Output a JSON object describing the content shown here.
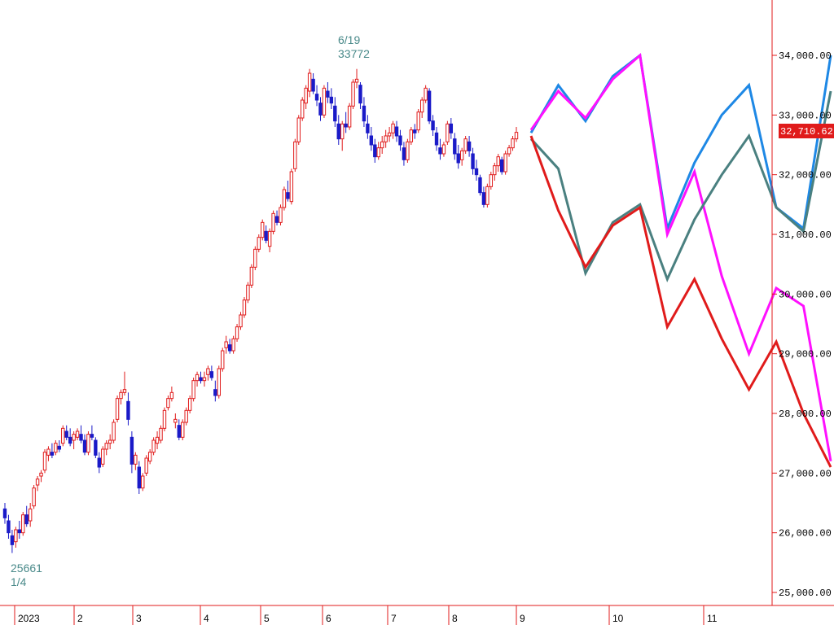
{
  "colors": {
    "up": "#e01b1b",
    "down": "#1a1ac8",
    "axis": "#e01b1b",
    "annotation": "#4a8a8a",
    "badge": "#e01b1b"
  },
  "chart_data": {
    "type": "candlestick",
    "ylim": [
      25000,
      34000
    ],
    "y_ticks": [
      "25,000.00",
      "26,000.00",
      "27,000.00",
      "28,000.00",
      "29,000.00",
      "30,000.00",
      "31,000.00",
      "32,000.00",
      "33,000.00",
      "34,000.00"
    ],
    "x_ticks": [
      "2023",
      "2",
      "3",
      "4",
      "5",
      "6",
      "7",
      "8",
      "9",
      "10",
      "11"
    ],
    "last_price": "32,710.62",
    "annotations": [
      {
        "label": "6/19",
        "value": "33772"
      },
      {
        "label": "25661",
        "value": "1/4"
      }
    ],
    "candles": [
      [
        26400,
        26500,
        26150,
        26250
      ],
      [
        26200,
        26300,
        25900,
        26000
      ],
      [
        25950,
        26050,
        25661,
        25800
      ],
      [
        25850,
        26100,
        25750,
        26050
      ],
      [
        26050,
        26200,
        25900,
        26000
      ],
      [
        26000,
        26350,
        25950,
        26300
      ],
      [
        26300,
        26450,
        26100,
        26150
      ],
      [
        26200,
        26500,
        26100,
        26400
      ],
      [
        26450,
        26800,
        26400,
        26750
      ],
      [
        26800,
        26950,
        26700,
        26900
      ],
      [
        26950,
        27050,
        26850,
        27000
      ],
      [
        27050,
        27400,
        27000,
        27350
      ],
      [
        27300,
        27450,
        27200,
        27400
      ],
      [
        27350,
        27500,
        27250,
        27300
      ],
      [
        27350,
        27550,
        27300,
        27500
      ],
      [
        27450,
        27550,
        27350,
        27400
      ],
      [
        27500,
        27800,
        27450,
        27750
      ],
      [
        27700,
        27800,
        27550,
        27600
      ],
      [
        27600,
        27750,
        27450,
        27500
      ],
      [
        27550,
        27700,
        27400,
        27650
      ],
      [
        27600,
        27750,
        27550,
        27700
      ],
      [
        27650,
        27800,
        27500,
        27550
      ],
      [
        27550,
        27650,
        27300,
        27350
      ],
      [
        27350,
        27700,
        27300,
        27650
      ],
      [
        27650,
        27800,
        27550,
        27600
      ],
      [
        27550,
        27600,
        27250,
        27300
      ],
      [
        27250,
        27350,
        27000,
        27100
      ],
      [
        27150,
        27450,
        27100,
        27400
      ],
      [
        27400,
        27550,
        27300,
        27500
      ],
      [
        27500,
        27650,
        27400,
        27550
      ],
      [
        27550,
        27900,
        27500,
        27850
      ],
      [
        27900,
        28300,
        27850,
        28250
      ],
      [
        28250,
        28400,
        28150,
        28350
      ],
      [
        28350,
        28700,
        28300,
        28400
      ],
      [
        28200,
        28350,
        27800,
        27900
      ],
      [
        27600,
        27700,
        27000,
        27150
      ],
      [
        27150,
        27350,
        27050,
        27300
      ],
      [
        27100,
        27200,
        26650,
        26750
      ],
      [
        26750,
        27000,
        26700,
        26950
      ],
      [
        27000,
        27300,
        26950,
        27250
      ],
      [
        27200,
        27400,
        27150,
        27350
      ],
      [
        27350,
        27600,
        27300,
        27550
      ],
      [
        27500,
        27700,
        27400,
        27600
      ],
      [
        27550,
        27800,
        27500,
        27750
      ],
      [
        27750,
        28100,
        27700,
        28050
      ],
      [
        28100,
        28300,
        28050,
        28250
      ],
      [
        28250,
        28450,
        28200,
        28350
      ],
      [
        27850,
        28000,
        27750,
        27900
      ],
      [
        27800,
        27900,
        27550,
        27600
      ],
      [
        27600,
        27900,
        27550,
        27850
      ],
      [
        27850,
        28100,
        27800,
        28050
      ],
      [
        28050,
        28300,
        28000,
        28250
      ],
      [
        28250,
        28600,
        28200,
        28550
      ],
      [
        28550,
        28700,
        28450,
        28650
      ],
      [
        28600,
        28700,
        28500,
        28550
      ],
      [
        28550,
        28700,
        28450,
        28600
      ],
      [
        28650,
        28800,
        28550,
        28750
      ],
      [
        28700,
        28800,
        28550,
        28600
      ],
      [
        28400,
        28550,
        28200,
        28300
      ],
      [
        28300,
        28800,
        28250,
        28750
      ],
      [
        28750,
        29100,
        28700,
        29050
      ],
      [
        29100,
        29300,
        29000,
        29200
      ],
      [
        29150,
        29250,
        29000,
        29050
      ],
      [
        29050,
        29300,
        29000,
        29250
      ],
      [
        29250,
        29500,
        29200,
        29450
      ],
      [
        29450,
        29700,
        29400,
        29650
      ],
      [
        29650,
        29950,
        29600,
        29900
      ],
      [
        29900,
        30200,
        29850,
        30150
      ],
      [
        30150,
        30500,
        30100,
        30450
      ],
      [
        30450,
        30800,
        30400,
        30750
      ],
      [
        30750,
        31000,
        30700,
        30950
      ],
      [
        30950,
        31250,
        30900,
        31200
      ],
      [
        31050,
        31150,
        30850,
        30900
      ],
      [
        30800,
        31100,
        30700,
        31050
      ],
      [
        31050,
        31400,
        31000,
        31350
      ],
      [
        31300,
        31400,
        31150,
        31200
      ],
      [
        31200,
        31500,
        31150,
        31450
      ],
      [
        31450,
        31800,
        31400,
        31750
      ],
      [
        31700,
        31900,
        31550,
        31600
      ],
      [
        31550,
        32100,
        31500,
        32050
      ],
      [
        32100,
        32600,
        32050,
        32550
      ],
      [
        32550,
        33000,
        32500,
        32950
      ],
      [
        32950,
        33300,
        32900,
        33250
      ],
      [
        33200,
        33500,
        33100,
        33450
      ],
      [
        33400,
        33772,
        33300,
        33700
      ],
      [
        33600,
        33700,
        33350,
        33400
      ],
      [
        33350,
        33500,
        33150,
        33250
      ],
      [
        33200,
        33300,
        32900,
        33000
      ],
      [
        33000,
        33500,
        32950,
        33450
      ],
      [
        33400,
        33550,
        33200,
        33300
      ],
      [
        33300,
        33450,
        33100,
        33200
      ],
      [
        33150,
        33300,
        32800,
        32900
      ],
      [
        32850,
        33000,
        32500,
        32600
      ],
      [
        32600,
        32900,
        32400,
        32850
      ],
      [
        32850,
        33050,
        32700,
        32800
      ],
      [
        32800,
        33200,
        32750,
        33150
      ],
      [
        33150,
        33600,
        33100,
        33550
      ],
      [
        33550,
        33772,
        33450,
        33600
      ],
      [
        33500,
        33550,
        33100,
        33200
      ],
      [
        33150,
        33300,
        32800,
        32900
      ],
      [
        32850,
        33000,
        32600,
        32700
      ],
      [
        32650,
        32800,
        32400,
        32500
      ],
      [
        32500,
        32600,
        32200,
        32300
      ],
      [
        32300,
        32550,
        32250,
        32450
      ],
      [
        32450,
        32650,
        32350,
        32550
      ],
      [
        32550,
        32750,
        32450,
        32650
      ],
      [
        32650,
        32800,
        32550,
        32700
      ],
      [
        32700,
        32900,
        32600,
        32850
      ],
      [
        32800,
        32900,
        32550,
        32650
      ],
      [
        32650,
        32750,
        32400,
        32500
      ],
      [
        32450,
        32550,
        32150,
        32250
      ],
      [
        32250,
        32600,
        32200,
        32550
      ],
      [
        32550,
        32800,
        32500,
        32750
      ],
      [
        32750,
        32850,
        32600,
        32700
      ],
      [
        32750,
        33100,
        32700,
        33050
      ],
      [
        33050,
        33300,
        32950,
        33250
      ],
      [
        33250,
        33500,
        33200,
        33450
      ],
      [
        33400,
        33450,
        32850,
        32900
      ],
      [
        32900,
        33000,
        32650,
        32750
      ],
      [
        32700,
        32800,
        32400,
        32500
      ],
      [
        32450,
        32600,
        32250,
        32350
      ],
      [
        32350,
        32550,
        32300,
        32500
      ],
      [
        32550,
        32900,
        32500,
        32850
      ],
      [
        32850,
        32950,
        32600,
        32700
      ],
      [
        32600,
        32700,
        32250,
        32350
      ],
      [
        32350,
        32500,
        32100,
        32200
      ],
      [
        32250,
        32450,
        32150,
        32400
      ],
      [
        32400,
        32650,
        32350,
        32600
      ],
      [
        32550,
        32650,
        32300,
        32400
      ],
      [
        32350,
        32450,
        32000,
        32100
      ],
      [
        32100,
        32250,
        31900,
        32000
      ],
      [
        31950,
        32000,
        31650,
        31700
      ],
      [
        31700,
        31800,
        31450,
        31500
      ],
      [
        31500,
        31850,
        31450,
        31800
      ],
      [
        31800,
        32050,
        31750,
        32000
      ],
      [
        32000,
        32200,
        31900,
        32150
      ],
      [
        32150,
        32350,
        32050,
        32300
      ],
      [
        32250,
        32300,
        32000,
        32050
      ],
      [
        32050,
        32400,
        32000,
        32350
      ],
      [
        32350,
        32500,
        32300,
        32450
      ],
      [
        32450,
        32650,
        32400,
        32600
      ],
      [
        32600,
        32800,
        32550,
        32710
      ]
    ],
    "series": [
      {
        "color": "#1e88e5",
        "start": 0,
        "values": [
          32700,
          33500,
          32900,
          33650,
          34000,
          31100,
          32200,
          33000,
          33500,
          31450,
          31100,
          34000
        ]
      },
      {
        "color": "#ff10ff",
        "start": 0,
        "values": [
          32750,
          33400,
          32950,
          33600,
          34000,
          31000,
          32050,
          30300,
          29000,
          30100,
          29800,
          27200
        ]
      },
      {
        "color": "#4a8080",
        "start": 0,
        "values": [
          32600,
          32100,
          30350,
          31200,
          31500,
          30250,
          31250,
          32000,
          32650,
          31450,
          31050,
          33400
        ]
      },
      {
        "color": "#e01b1b",
        "start": 0,
        "values": [
          32650,
          31400,
          30450,
          31150,
          31450,
          29450,
          30250,
          29250,
          28400,
          29200,
          28000,
          27100
        ]
      }
    ]
  }
}
